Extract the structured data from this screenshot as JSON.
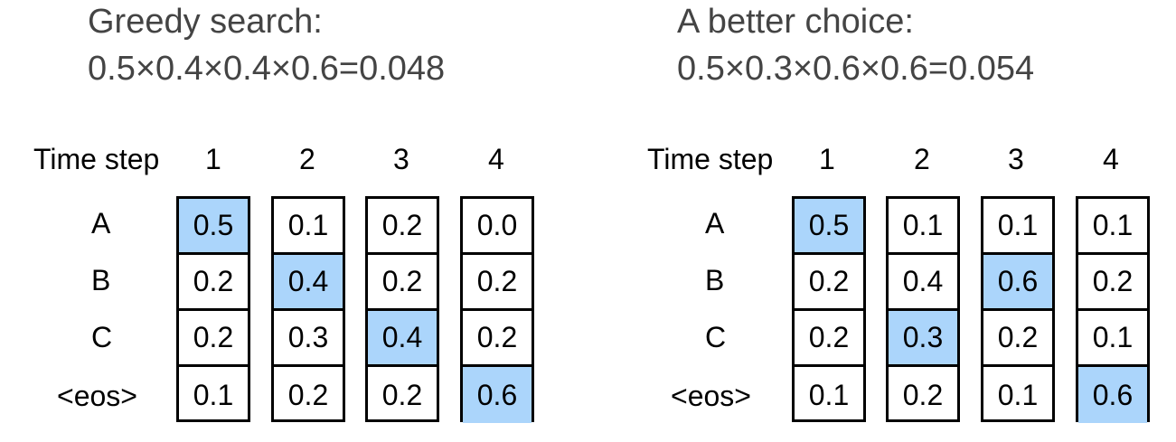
{
  "accent_color": "#abd5fb",
  "panels": [
    {
      "title_line1": "Greedy search:",
      "title_line2": "0.5×0.4×0.4×0.6=0.048",
      "time_step_label": "Time step",
      "steps": [
        "1",
        "2",
        "3",
        "4"
      ],
      "rows": [
        "A",
        "B",
        "C",
        "<eos>"
      ],
      "values": [
        [
          "0.5",
          "0.2",
          "0.2",
          "0.1"
        ],
        [
          "0.1",
          "0.4",
          "0.3",
          "0.2"
        ],
        [
          "0.2",
          "0.2",
          "0.4",
          "0.2"
        ],
        [
          "0.0",
          "0.2",
          "0.2",
          "0.6"
        ]
      ],
      "selected_row_index": [
        0,
        1,
        2,
        3
      ]
    },
    {
      "title_line1": "A better choice:",
      "title_line2": "0.5×0.3×0.6×0.6=0.054",
      "time_step_label": "Time step",
      "steps": [
        "1",
        "2",
        "3",
        "4"
      ],
      "rows": [
        "A",
        "B",
        "C",
        "<eos>"
      ],
      "values": [
        [
          "0.5",
          "0.2",
          "0.2",
          "0.1"
        ],
        [
          "0.1",
          "0.4",
          "0.3",
          "0.2"
        ],
        [
          "0.1",
          "0.6",
          "0.2",
          "0.1"
        ],
        [
          "0.1",
          "0.2",
          "0.1",
          "0.6"
        ]
      ],
      "selected_row_index": [
        0,
        2,
        1,
        3
      ]
    }
  ]
}
